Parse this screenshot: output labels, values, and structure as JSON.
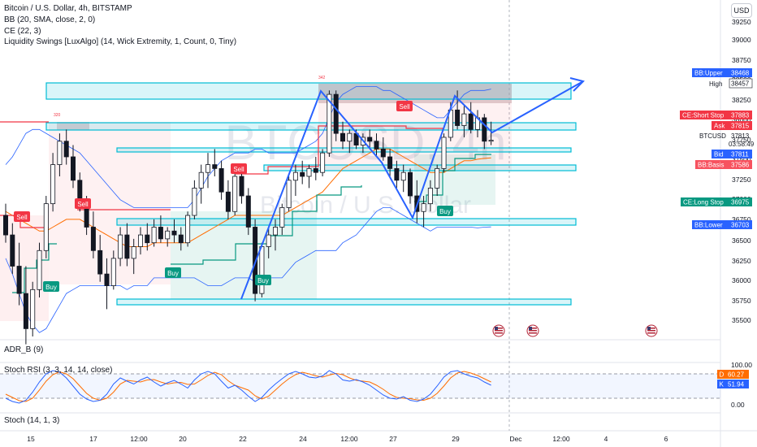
{
  "legend": {
    "symbol": "Bitcoin / U.S. Dollar, 4h, BITSTAMP",
    "bb": "BB (20, SMA, close, 2, 0)",
    "ce": "CE (22, 3)",
    "ls": "Liquidity Swings [LuxAlgo] (14, Wick Extremity, 1, Count, 0, Tiny)"
  },
  "currency_button": "USD",
  "watermark": {
    "ticker": "BTCUSD, 4h",
    "name": "Bitcoin / U.S. Dollar"
  },
  "price_axis": [
    "39250",
    "39000",
    "38750",
    "38500",
    "38250",
    "38000",
    "37750",
    "37500",
    "37250",
    "37000",
    "36750",
    "36500",
    "36250",
    "36000",
    "35750",
    "35500"
  ],
  "price_tags": [
    {
      "label": "BB:Upper",
      "value": "38468",
      "color": "#2962ff"
    },
    {
      "label": "High",
      "value": "38457",
      "color": ""
    },
    {
      "label": "CE:Short Stop",
      "value": "37883",
      "color": "#f23645"
    },
    {
      "label": "Ask",
      "value": "37815",
      "color": "#f23645"
    },
    {
      "label": "BTCUSD",
      "value": "37813",
      "color": ""
    },
    {
      "label": "",
      "value": "03:58:49",
      "color": ""
    },
    {
      "label": "Bid",
      "value": "37811",
      "color": "#2962ff"
    },
    {
      "label": "BB:Basis",
      "value": "37586",
      "color": "#f7525f"
    },
    {
      "label": "CE:Long Stop",
      "value": "36975",
      "color": "#089981"
    },
    {
      "label": "BB:Lower",
      "value": "36703",
      "color": "#2962ff"
    }
  ],
  "swing_labels": [
    {
      "text": "342"
    },
    {
      "text": "320"
    }
  ],
  "signals": {
    "sell": "Sell",
    "buy": "Buy"
  },
  "lower_panes": {
    "adr": "ADR_B (9)",
    "stoch_rsi": "Stoch RSI (3, 3, 14, 14, close)",
    "stoch": "Stoch (14, 1, 3)"
  },
  "stoch_axis": [
    "100.00",
    "0.00"
  ],
  "stoch_tags": [
    {
      "label": "D",
      "value": "60.27",
      "color": "#ff6d00"
    },
    {
      "label": "K",
      "value": "51.94",
      "color": "#2962ff"
    }
  ],
  "time_axis": [
    "15",
    "17",
    "12:00",
    "20",
    "22",
    "24",
    "12:00",
    "27",
    "29",
    "Dec",
    "12:00",
    "4",
    "6"
  ],
  "chart_data": {
    "type": "candlestick",
    "ylim": [
      35300,
      39400
    ],
    "candles": [
      {
        "o": 36850,
        "h": 37000,
        "l": 36500,
        "c": 36600
      },
      {
        "o": 36600,
        "h": 36750,
        "l": 36100,
        "c": 36200
      },
      {
        "o": 36200,
        "h": 36500,
        "l": 35700,
        "c": 35850
      },
      {
        "o": 35850,
        "h": 36200,
        "l": 35200,
        "c": 35400
      },
      {
        "o": 35400,
        "h": 36000,
        "l": 35300,
        "c": 35900
      },
      {
        "o": 35900,
        "h": 36500,
        "l": 35800,
        "c": 36400
      },
      {
        "o": 36400,
        "h": 37100,
        "l": 36300,
        "c": 37000
      },
      {
        "o": 37000,
        "h": 37650,
        "l": 36900,
        "c": 37500
      },
      {
        "o": 37500,
        "h": 37900,
        "l": 37350,
        "c": 37800
      },
      {
        "o": 37800,
        "h": 37950,
        "l": 37500,
        "c": 37600
      },
      {
        "o": 37600,
        "h": 37750,
        "l": 37200,
        "c": 37300
      },
      {
        "o": 37300,
        "h": 37400,
        "l": 36900,
        "c": 37000
      },
      {
        "o": 37000,
        "h": 37100,
        "l": 36600,
        "c": 36700
      },
      {
        "o": 36700,
        "h": 36900,
        "l": 36300,
        "c": 36400
      },
      {
        "o": 36400,
        "h": 36600,
        "l": 36000,
        "c": 36100
      },
      {
        "o": 36100,
        "h": 36300,
        "l": 35650,
        "c": 35950
      },
      {
        "o": 35950,
        "h": 36400,
        "l": 35900,
        "c": 36300
      },
      {
        "o": 36300,
        "h": 36700,
        "l": 36200,
        "c": 36600
      },
      {
        "o": 36600,
        "h": 36750,
        "l": 36200,
        "c": 36300
      },
      {
        "o": 36300,
        "h": 36550,
        "l": 36100,
        "c": 36450
      },
      {
        "o": 36450,
        "h": 36700,
        "l": 36350,
        "c": 36600
      },
      {
        "o": 36600,
        "h": 36750,
        "l": 36400,
        "c": 36500
      },
      {
        "o": 36500,
        "h": 36800,
        "l": 36450,
        "c": 36700
      },
      {
        "o": 36700,
        "h": 36850,
        "l": 36500,
        "c": 36550
      },
      {
        "o": 36550,
        "h": 36700,
        "l": 36450,
        "c": 36650
      },
      {
        "o": 36650,
        "h": 36800,
        "l": 36500,
        "c": 36600
      },
      {
        "o": 36600,
        "h": 36700,
        "l": 36400,
        "c": 36500
      },
      {
        "o": 36500,
        "h": 36900,
        "l": 36450,
        "c": 36850
      },
      {
        "o": 36850,
        "h": 37300,
        "l": 36800,
        "c": 37200
      },
      {
        "o": 37200,
        "h": 37500,
        "l": 37000,
        "c": 37400
      },
      {
        "o": 37400,
        "h": 37650,
        "l": 37200,
        "c": 37500
      },
      {
        "o": 37500,
        "h": 37700,
        "l": 37350,
        "c": 37450
      },
      {
        "o": 37450,
        "h": 37550,
        "l": 37050,
        "c": 37150
      },
      {
        "o": 37150,
        "h": 37300,
        "l": 36800,
        "c": 36900
      },
      {
        "o": 36900,
        "h": 37400,
        "l": 36850,
        "c": 37350
      },
      {
        "o": 37350,
        "h": 37450,
        "l": 37000,
        "c": 37100
      },
      {
        "o": 37100,
        "h": 37200,
        "l": 36600,
        "c": 36700
      },
      {
        "o": 36700,
        "h": 36800,
        "l": 35750,
        "c": 35850
      },
      {
        "o": 35850,
        "h": 36500,
        "l": 35800,
        "c": 36450
      },
      {
        "o": 36450,
        "h": 36700,
        "l": 36300,
        "c": 36600
      },
      {
        "o": 36600,
        "h": 36800,
        "l": 36400,
        "c": 36700
      },
      {
        "o": 36700,
        "h": 37000,
        "l": 36600,
        "c": 36950
      },
      {
        "o": 36950,
        "h": 37350,
        "l": 36900,
        "c": 37300
      },
      {
        "o": 37300,
        "h": 37500,
        "l": 37100,
        "c": 37400
      },
      {
        "o": 37400,
        "h": 37550,
        "l": 37250,
        "c": 37350
      },
      {
        "o": 37350,
        "h": 37500,
        "l": 37200,
        "c": 37450
      },
      {
        "o": 37450,
        "h": 37600,
        "l": 37300,
        "c": 37400
      },
      {
        "o": 37400,
        "h": 37700,
        "l": 37350,
        "c": 37650
      },
      {
        "o": 37650,
        "h": 38450,
        "l": 37600,
        "c": 38400
      },
      {
        "o": 38400,
        "h": 38450,
        "l": 37800,
        "c": 37900
      },
      {
        "o": 37900,
        "h": 38050,
        "l": 37700,
        "c": 37800
      },
      {
        "o": 37800,
        "h": 37950,
        "l": 37650,
        "c": 37900
      },
      {
        "o": 37900,
        "h": 37950,
        "l": 37700,
        "c": 37750
      },
      {
        "o": 37750,
        "h": 37900,
        "l": 37650,
        "c": 37850
      },
      {
        "o": 37850,
        "h": 37950,
        "l": 37700,
        "c": 37800
      },
      {
        "o": 37800,
        "h": 37900,
        "l": 37600,
        "c": 37700
      },
      {
        "o": 37700,
        "h": 37850,
        "l": 37550,
        "c": 37600
      },
      {
        "o": 37600,
        "h": 37700,
        "l": 37350,
        "c": 37450
      },
      {
        "o": 37450,
        "h": 37550,
        "l": 37200,
        "c": 37300
      },
      {
        "o": 37300,
        "h": 37500,
        "l": 37150,
        "c": 37400
      },
      {
        "o": 37400,
        "h": 37450,
        "l": 37000,
        "c": 37100
      },
      {
        "o": 37100,
        "h": 37300,
        "l": 36750,
        "c": 36900
      },
      {
        "o": 36900,
        "h": 37100,
        "l": 36700,
        "c": 37000
      },
      {
        "o": 37000,
        "h": 37300,
        "l": 36900,
        "c": 37200
      },
      {
        "o": 37200,
        "h": 37500,
        "l": 37100,
        "c": 37450
      },
      {
        "o": 37450,
        "h": 37900,
        "l": 37400,
        "c": 37850
      },
      {
        "o": 37850,
        "h": 38300,
        "l": 37800,
        "c": 38200
      },
      {
        "o": 38200,
        "h": 38450,
        "l": 37950,
        "c": 38000
      },
      {
        "o": 38000,
        "h": 38250,
        "l": 37850,
        "c": 38150
      },
      {
        "o": 38150,
        "h": 38300,
        "l": 37900,
        "c": 37950
      },
      {
        "o": 37950,
        "h": 38200,
        "l": 37850,
        "c": 38100
      },
      {
        "o": 38100,
        "h": 38150,
        "l": 37700,
        "c": 37800
      },
      {
        "o": 37800,
        "h": 38050,
        "l": 37750,
        "c": 37813
      }
    ],
    "bb_upper": [
      37500,
      37600,
      37750,
      37900,
      37950,
      37950,
      37900,
      37850,
      37800,
      37750,
      37700,
      37650,
      37550,
      37450,
      37350,
      37250,
      37150,
      37050,
      37000,
      36950,
      36950,
      36950,
      36950,
      36950,
      36950,
      36950,
      36950,
      36950,
      37050,
      37200,
      37350,
      37450,
      37550,
      37600,
      37650,
      37650,
      37650,
      37700,
      37700,
      37650,
      37650,
      37650,
      37650,
      37650,
      37700,
      37750,
      37800,
      37900,
      38100,
      38300,
      38400,
      38450,
      38500,
      38500,
      38500,
      38500,
      38450,
      38450,
      38400,
      38350,
      38300,
      38250,
      38200,
      38150,
      38100,
      38100,
      38200,
      38300,
      38400,
      38450,
      38450,
      38450,
      38468
    ],
    "bb_basis": [
      36900,
      36850,
      36800,
      36750,
      36700,
      36650,
      36650,
      36700,
      36750,
      36800,
      36800,
      36800,
      36750,
      36700,
      36650,
      36600,
      36550,
      36500,
      36450,
      36450,
      36450,
      36450,
      36500,
      36500,
      36500,
      36500,
      36500,
      36500,
      36550,
      36600,
      36650,
      36700,
      36750,
      36800,
      36850,
      36850,
      36850,
      36850,
      36850,
      36850,
      36850,
      36850,
      36900,
      36950,
      37000,
      37050,
      37100,
      37150,
      37250,
      37350,
      37450,
      37500,
      37550,
      37600,
      37650,
      37700,
      37700,
      37700,
      37650,
      37600,
      37550,
      37500,
      37450,
      37400,
      37400,
      37400,
      37450,
      37500,
      37550,
      37550,
      37570,
      37580,
      37586
    ],
    "bb_lower": [
      36300,
      36100,
      35850,
      35600,
      35450,
      35350,
      35400,
      35550,
      35700,
      35850,
      35900,
      35950,
      35950,
      35950,
      35950,
      35950,
      35950,
      35950,
      35900,
      35950,
      35950,
      35950,
      36050,
      36050,
      36050,
      36050,
      36050,
      36050,
      36050,
      36000,
      35950,
      35950,
      35950,
      36000,
      36050,
      36050,
      36050,
      36000,
      36000,
      36050,
      36050,
      36050,
      36150,
      36250,
      36300,
      36350,
      36400,
      36400,
      36400,
      36400,
      36500,
      36550,
      36600,
      36700,
      36800,
      36900,
      36950,
      36950,
      36900,
      36850,
      36800,
      36750,
      36700,
      36650,
      36700,
      36700,
      36700,
      36700,
      36700,
      36700,
      36690,
      36700,
      36703
    ],
    "stoch_k": [
      20,
      12,
      8,
      15,
      35,
      60,
      80,
      88,
      84,
      70,
      50,
      30,
      18,
      12,
      15,
      30,
      55,
      70,
      62,
      55,
      65,
      72,
      60,
      50,
      58,
      64,
      55,
      45,
      65,
      80,
      86,
      80,
      62,
      45,
      52,
      40,
      25,
      12,
      22,
      40,
      55,
      68,
      80,
      86,
      80,
      72,
      70,
      75,
      88,
      80,
      65,
      62,
      66,
      60,
      52,
      40,
      28,
      20,
      18,
      24,
      15,
      12,
      18,
      30,
      50,
      72,
      85,
      88,
      80,
      74,
      70,
      60,
      52
    ],
    "stoch_d": [
      30,
      22,
      14,
      12,
      20,
      40,
      62,
      78,
      85,
      80,
      68,
      50,
      32,
      20,
      15,
      20,
      35,
      55,
      64,
      62,
      60,
      65,
      66,
      60,
      55,
      58,
      59,
      54,
      55,
      65,
      76,
      84,
      78,
      63,
      52,
      46,
      40,
      26,
      18,
      25,
      40,
      55,
      68,
      78,
      84,
      80,
      75,
      72,
      77,
      81,
      78,
      70,
      64,
      62,
      60,
      52,
      42,
      30,
      22,
      20,
      19,
      16,
      15,
      20,
      32,
      50,
      70,
      82,
      86,
      82,
      76,
      68,
      60
    ]
  }
}
